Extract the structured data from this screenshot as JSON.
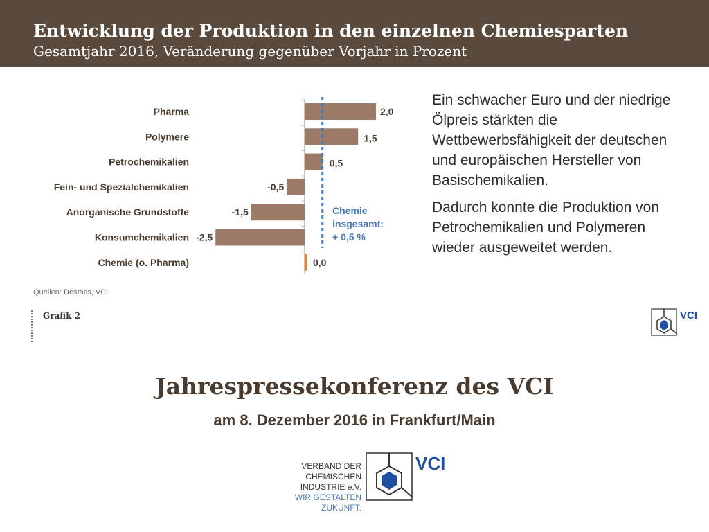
{
  "header": {
    "title": "Entwicklung der Produktion in den einzelnen Chemiesparten",
    "subtitle": "Gesamtjahr 2016, Veränderung gegenüber Vorjahr in Prozent"
  },
  "chart_data": {
    "type": "bar",
    "orientation": "horizontal",
    "categories": [
      "Pharma",
      "Polymere",
      "Petrochemikalien",
      "Fein- und Spezialchemikalien",
      "Anorganische Grundstoffe",
      "Konsumchemikalien",
      "Chemie (o. Pharma)"
    ],
    "values": [
      2.0,
      1.5,
      0.5,
      -0.5,
      -1.5,
      -2.5,
      0.0
    ],
    "value_labels": [
      "2,0",
      "1,5",
      "0,5",
      "-0,5",
      "-1,5",
      "-2,5",
      "0,0"
    ],
    "bar_colors": [
      "#9b7b68",
      "#9b7b68",
      "#9b7b68",
      "#9b7b68",
      "#9b7b68",
      "#9b7b68",
      "#e0803e"
    ],
    "reference_line": {
      "value": 0.5,
      "label_lines": [
        "Chemie",
        "insgesamt:",
        "+ 0,5 %"
      ],
      "color": "#4a7bb7"
    },
    "xlim": [
      -2.6,
      2.1
    ],
    "grid": false
  },
  "side_text": {
    "paragraph1": "Ein schwacher Euro und der niedrige Ölpreis stärkten die Wettbewerbsfähigkeit der deutschen und europäischen Hersteller von Basischemikalien.",
    "paragraph2": "Dadurch konnte die Produktion von Petrochemikalien und Polymeren wieder ausgeweitet werden."
  },
  "source": "Quellen: Destatis, VCI",
  "grafik_label": "Grafik 2",
  "logo_text": "VCI",
  "main_title": "Jahrespressekonferenz des VCI",
  "main_subtitle": "am 8. Dezember 2016 in Frankfurt/Main",
  "footer": {
    "org_line1": "VERBAND DER",
    "org_line2": "CHEMISCHEN INDUSTRIE e.V.",
    "org_line3": "WIR GESTALTEN ZUKUNFT.",
    "logo_text": "VCI"
  },
  "colors": {
    "header_bg": "#5a4a3e",
    "text_brown": "#4a3b30",
    "accent_blue": "#4a7bb7",
    "logo_blue": "#1e4fa0"
  }
}
